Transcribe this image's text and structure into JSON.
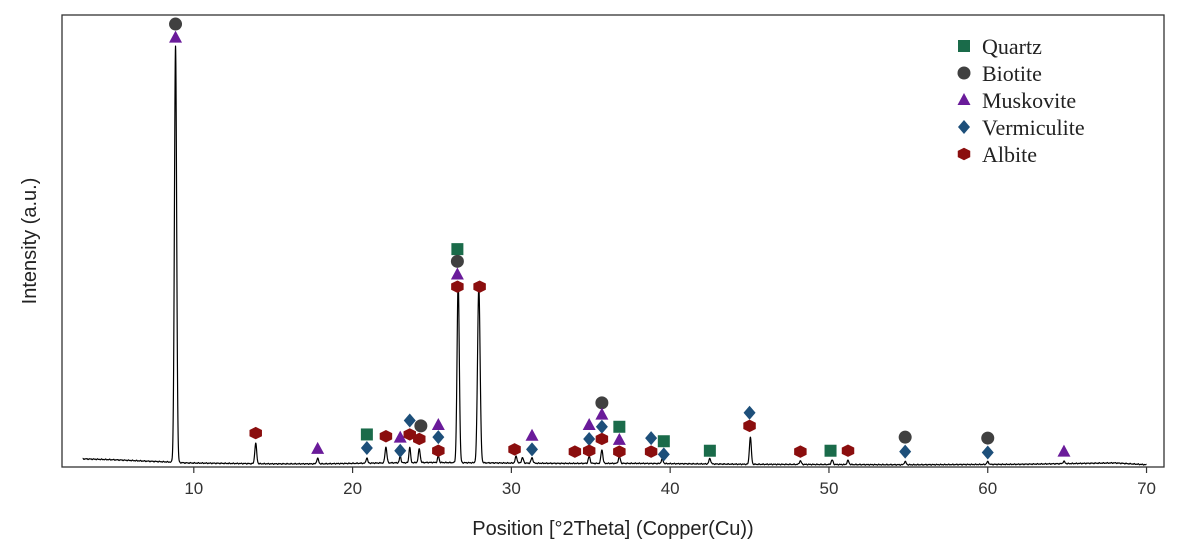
{
  "chart_data": {
    "type": "line",
    "xlabel": "Position [°2Theta] (Copper(Cu))",
    "ylabel": "Intensity (a.u.)",
    "xlim": [
      1.7,
      71.1
    ],
    "ylim": [
      0,
      100
    ],
    "xticks": [
      "10",
      "20",
      "30",
      "40",
      "50",
      "60",
      "70"
    ],
    "xtick_values": [
      10,
      20,
      30,
      40,
      50,
      60,
      70
    ],
    "y_tick_labels": false,
    "grid": false,
    "legend_position": "top-right",
    "colors": {
      "trace": "#000000",
      "quartz": "#1a6b4a",
      "biotite": "#404040",
      "muskovite": "#6a1b9a",
      "vermiculite": "#1d4f7a",
      "albite": "#8b0e0e"
    },
    "legend": [
      {
        "name": "Quartz",
        "marker": "square",
        "color": "#1a6b4a"
      },
      {
        "name": "Biotite",
        "marker": "circle",
        "color": "#404040"
      },
      {
        "name": "Muskovite",
        "marker": "triangle",
        "color": "#6a1b9a"
      },
      {
        "name": "Vermiculite",
        "marker": "diamond",
        "color": "#1d4f7a"
      },
      {
        "name": "Albite",
        "marker": "hexagon",
        "color": "#8b0e0e"
      }
    ],
    "baseline": [
      [
        3,
        1.8
      ],
      [
        5,
        1.6
      ],
      [
        7,
        1.3
      ],
      [
        8.5,
        1.1
      ],
      [
        9.5,
        0.9
      ],
      [
        12,
        0.8
      ],
      [
        15,
        0.7
      ],
      [
        18,
        0.7
      ],
      [
        22,
        0.9
      ],
      [
        25,
        1.0
      ],
      [
        29,
        0.9
      ],
      [
        33,
        0.8
      ],
      [
        38,
        0.8
      ],
      [
        45,
        0.6
      ],
      [
        55,
        0.5
      ],
      [
        62,
        0.6
      ],
      [
        68,
        0.9
      ],
      [
        70,
        0.5
      ]
    ],
    "peaks": [
      {
        "x": 8.85,
        "height": 92,
        "width": 0.07
      },
      {
        "x": 13.9,
        "height": 4.5,
        "width": 0.06
      },
      {
        "x": 17.8,
        "height": 1.2,
        "width": 0.06
      },
      {
        "x": 20.9,
        "height": 1.2,
        "width": 0.05
      },
      {
        "x": 22.1,
        "height": 3.5,
        "width": 0.06
      },
      {
        "x": 23.0,
        "height": 1.5,
        "width": 0.05
      },
      {
        "x": 23.6,
        "height": 3.5,
        "width": 0.05
      },
      {
        "x": 24.2,
        "height": 3.0,
        "width": 0.06
      },
      {
        "x": 25.4,
        "height": 1.5,
        "width": 0.05
      },
      {
        "x": 26.65,
        "height": 40,
        "width": 0.07
      },
      {
        "x": 27.95,
        "height": 39,
        "width": 0.08
      },
      {
        "x": 30.3,
        "height": 1.5,
        "width": 0.06
      },
      {
        "x": 30.7,
        "height": 1.2,
        "width": 0.06
      },
      {
        "x": 31.3,
        "height": 1.2,
        "width": 0.06
      },
      {
        "x": 34.9,
        "height": 1.5,
        "width": 0.06
      },
      {
        "x": 35.7,
        "height": 3.0,
        "width": 0.06
      },
      {
        "x": 36.8,
        "height": 1.5,
        "width": 0.06
      },
      {
        "x": 39.5,
        "height": 1.0,
        "width": 0.06
      },
      {
        "x": 42.5,
        "height": 1.2,
        "width": 0.06
      },
      {
        "x": 45.05,
        "height": 6.0,
        "width": 0.06
      },
      {
        "x": 48.2,
        "height": 0.8,
        "width": 0.06
      },
      {
        "x": 50.2,
        "height": 1.0,
        "width": 0.06
      },
      {
        "x": 51.2,
        "height": 0.9,
        "width": 0.06
      },
      {
        "x": 54.8,
        "height": 0.7,
        "width": 0.06
      },
      {
        "x": 60.0,
        "height": 0.6,
        "width": 0.06
      },
      {
        "x": 64.8,
        "height": 0.5,
        "width": 0.06
      }
    ],
    "markers": [
      {
        "phase": "biotite",
        "x": 8.85,
        "y": 98
      },
      {
        "phase": "muskovite",
        "x": 8.85,
        "y": 95
      },
      {
        "phase": "albite",
        "x": 13.9,
        "y": 7.5
      },
      {
        "phase": "muskovite",
        "x": 17.8,
        "y": 4.0
      },
      {
        "phase": "quartz",
        "x": 20.9,
        "y": 7.2
      },
      {
        "phase": "vermiculite",
        "x": 20.9,
        "y": 4.2
      },
      {
        "phase": "albite",
        "x": 22.1,
        "y": 6.8
      },
      {
        "phase": "muskovite",
        "x": 23.0,
        "y": 6.5
      },
      {
        "phase": "vermiculite",
        "x": 23.0,
        "y": 3.6
      },
      {
        "phase": "vermiculite",
        "x": 23.6,
        "y": 10.3
      },
      {
        "phase": "albite",
        "x": 23.6,
        "y": 7.2
      },
      {
        "phase": "biotite",
        "x": 24.3,
        "y": 9.1
      },
      {
        "phase": "albite",
        "x": 24.2,
        "y": 6.2
      },
      {
        "phase": "muskovite",
        "x": 25.4,
        "y": 9.3
      },
      {
        "phase": "vermiculite",
        "x": 25.4,
        "y": 6.6
      },
      {
        "phase": "albite",
        "x": 25.4,
        "y": 3.6
      },
      {
        "phase": "quartz",
        "x": 26.6,
        "y": 48.2
      },
      {
        "phase": "biotite",
        "x": 26.6,
        "y": 45.5
      },
      {
        "phase": "muskovite",
        "x": 26.6,
        "y": 42.6
      },
      {
        "phase": "albite",
        "x": 26.6,
        "y": 39.9
      },
      {
        "phase": "albite",
        "x": 28.0,
        "y": 39.9
      },
      {
        "phase": "albite",
        "x": 30.2,
        "y": 3.9
      },
      {
        "phase": "muskovite",
        "x": 31.3,
        "y": 6.9
      },
      {
        "phase": "vermiculite",
        "x": 31.3,
        "y": 3.9
      },
      {
        "phase": "albite",
        "x": 34.0,
        "y": 3.4
      },
      {
        "phase": "muskovite",
        "x": 34.9,
        "y": 9.3
      },
      {
        "phase": "vermiculite",
        "x": 34.9,
        "y": 6.2
      },
      {
        "phase": "albite",
        "x": 34.9,
        "y": 3.6
      },
      {
        "phase": "biotite",
        "x": 35.7,
        "y": 14.2
      },
      {
        "phase": "muskovite",
        "x": 35.7,
        "y": 11.6
      },
      {
        "phase": "vermiculite",
        "x": 35.7,
        "y": 8.9
      },
      {
        "phase": "albite",
        "x": 35.7,
        "y": 6.2
      },
      {
        "phase": "quartz",
        "x": 36.8,
        "y": 8.9
      },
      {
        "phase": "muskovite",
        "x": 36.8,
        "y": 6.0
      },
      {
        "phase": "albite",
        "x": 36.8,
        "y": 3.4
      },
      {
        "phase": "vermiculite",
        "x": 38.8,
        "y": 6.4
      },
      {
        "phase": "albite",
        "x": 38.8,
        "y": 3.4
      },
      {
        "phase": "quartz",
        "x": 39.6,
        "y": 5.7
      },
      {
        "phase": "vermiculite",
        "x": 39.6,
        "y": 2.8
      },
      {
        "phase": "quartz",
        "x": 42.5,
        "y": 3.6
      },
      {
        "phase": "vermiculite",
        "x": 45.0,
        "y": 12.0
      },
      {
        "phase": "albite",
        "x": 45.0,
        "y": 9.1
      },
      {
        "phase": "albite",
        "x": 48.2,
        "y": 3.4
      },
      {
        "phase": "quartz",
        "x": 50.1,
        "y": 3.6
      },
      {
        "phase": "albite",
        "x": 51.2,
        "y": 3.6
      },
      {
        "phase": "biotite",
        "x": 54.8,
        "y": 6.6
      },
      {
        "phase": "vermiculite",
        "x": 54.8,
        "y": 3.4
      },
      {
        "phase": "biotite",
        "x": 60.0,
        "y": 6.4
      },
      {
        "phase": "vermiculite",
        "x": 60.0,
        "y": 3.2
      },
      {
        "phase": "muskovite",
        "x": 64.8,
        "y": 3.4
      }
    ]
  }
}
